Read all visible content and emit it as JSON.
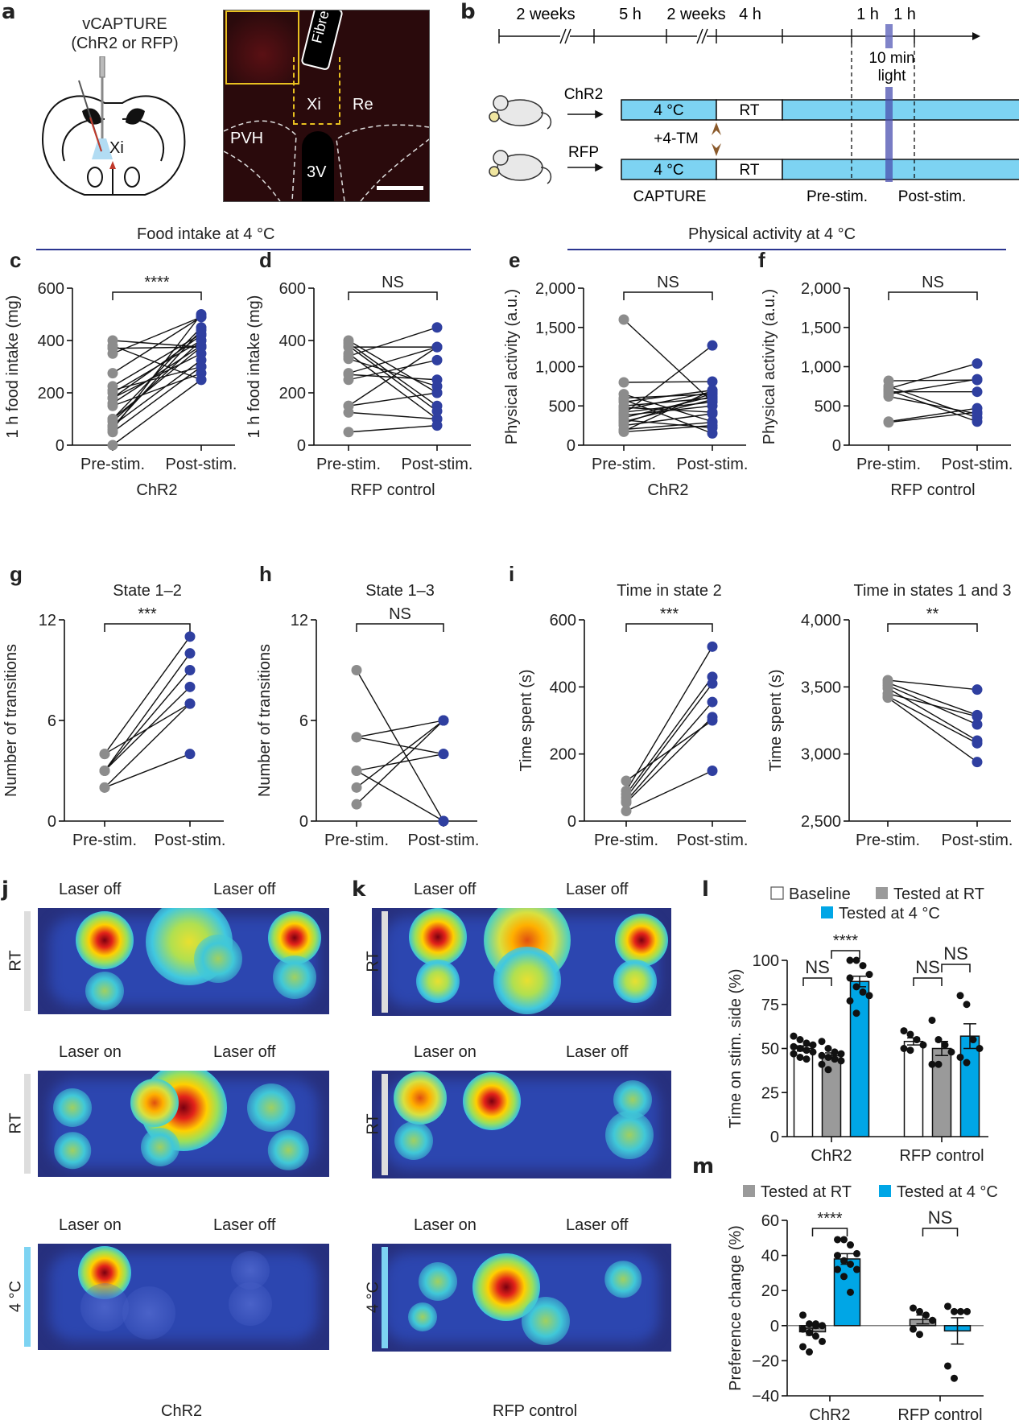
{
  "panels": {
    "a": {
      "label": "a",
      "title": "vCAPTURE",
      "subtitle": "(ChR2 or RFP)",
      "xi_label": "Xi",
      "micro": {
        "fibre": "Fibre",
        "xi": "Xi",
        "re": "Re",
        "pvh": "PVH",
        "v3": "3V"
      }
    },
    "b": {
      "label": "b",
      "timeline": [
        "2 weeks",
        "5 h",
        "2 weeks",
        "4 h",
        "1 h",
        "1 h"
      ],
      "light_label_1": "10 min",
      "light_label_2": "light",
      "groups": [
        "ChR2",
        "RFP"
      ],
      "bar_cold": "4 °C",
      "bar_rt": "RT",
      "tm_label": "+4-TM",
      "capture": "CAPTURE",
      "pre": "Pre-stim.",
      "post": "Post-stim.",
      "colors": {
        "cold": "#7dd3f2",
        "light": "#5457b0",
        "arrow": "#8b5a2b"
      }
    },
    "section_food": "Food intake at 4 °C",
    "section_activity": "Physical activity at 4 °C",
    "j": {
      "label": "j",
      "footer": "ChR2",
      "rows": [
        {
          "left": "Laser off",
          "right": "Laser off",
          "side": "RT"
        },
        {
          "left": "Laser on",
          "right": "Laser off",
          "side": "RT"
        },
        {
          "left": "Laser on",
          "right": "Laser off",
          "side": "4 °C"
        }
      ]
    },
    "k": {
      "label": "k",
      "footer": "RFP control",
      "rows": [
        {
          "left": "Laser off",
          "right": "Laser off",
          "side": "RT"
        },
        {
          "left": "Laser on",
          "right": "Laser off",
          "side": "RT"
        },
        {
          "left": "Laser on",
          "right": "Laser off",
          "side": "4 °C"
        }
      ]
    }
  },
  "colors": {
    "pre": "#8c8c8c",
    "post": "#2f3fa0",
    "section_line": "#2b3590",
    "blue_bar": "#00a6e6",
    "gray_bar": "#9a9a9a",
    "rt_bar": "#dddddd",
    "cold_bar": "#7dd3f2"
  },
  "chart_data": [
    {
      "id": "c",
      "label": "c",
      "type": "scatter",
      "title": "",
      "xlabel": "ChR2",
      "ylabel": "1 h food intake (mg)",
      "categories": [
        "Pre-stim.",
        "Post-stim."
      ],
      "ylim": [
        0,
        600
      ],
      "yticks": [
        0,
        200,
        400,
        600
      ],
      "ytick_labels": [
        "0",
        "200",
        "400",
        "600"
      ],
      "significance": "****",
      "pairs": [
        [
          400,
          375
        ],
        [
          380,
          250
        ],
        [
          370,
          375
        ],
        [
          350,
          490
        ],
        [
          275,
          490
        ],
        [
          225,
          425
        ],
        [
          210,
          300
        ],
        [
          200,
          400
        ],
        [
          180,
          350
        ],
        [
          150,
          275
        ],
        [
          100,
          450
        ],
        [
          100,
          375
        ],
        [
          75,
          325
        ],
        [
          60,
          500
        ],
        [
          50,
          300
        ],
        [
          0,
          250
        ],
        [
          180,
          420
        ],
        [
          160,
          380
        ],
        [
          90,
          400
        ],
        [
          70,
          440
        ]
      ]
    },
    {
      "id": "d",
      "label": "d",
      "type": "scatter",
      "title": "",
      "xlabel": "RFP control",
      "ylabel": "1 h food intake (mg)",
      "categories": [
        "Pre-stim.",
        "Post-stim."
      ],
      "ylim": [
        0,
        600
      ],
      "yticks": [
        0,
        200,
        400,
        600
      ],
      "ytick_labels": [
        "0",
        "200",
        "400",
        "600"
      ],
      "significance": "NS",
      "pairs": [
        [
          400,
          200
        ],
        [
          390,
          150
        ],
        [
          375,
          375
        ],
        [
          350,
          100
        ],
        [
          340,
          450
        ],
        [
          330,
          225
        ],
        [
          275,
          375
        ],
        [
          270,
          250
        ],
        [
          250,
          325
        ],
        [
          150,
          200
        ],
        [
          150,
          375
        ],
        [
          125,
          100
        ],
        [
          50,
          75
        ],
        [
          380,
          130
        ]
      ]
    },
    {
      "id": "e",
      "label": "e",
      "type": "scatter",
      "title": "",
      "xlabel": "ChR2",
      "ylabel": "Physical activity (a.u.)",
      "categories": [
        "Pre-stim.",
        "Post-stim."
      ],
      "ylim": [
        0,
        2000
      ],
      "yticks": [
        0,
        500,
        1000,
        1500,
        2000
      ],
      "ytick_labels": [
        "0",
        "500",
        "1,000",
        "1,500",
        "2,000"
      ],
      "significance": "NS",
      "pairs": [
        [
          1600,
          550
        ],
        [
          800,
          810
        ],
        [
          650,
          300
        ],
        [
          600,
          650
        ],
        [
          580,
          150
        ],
        [
          550,
          700
        ],
        [
          500,
          600
        ],
        [
          480,
          420
        ],
        [
          450,
          680
        ],
        [
          420,
          550
        ],
        [
          400,
          1270
        ],
        [
          380,
          500
        ],
        [
          350,
          620
        ],
        [
          320,
          220
        ],
        [
          300,
          580
        ],
        [
          280,
          660
        ],
        [
          250,
          400
        ],
        [
          200,
          290
        ],
        [
          180,
          700
        ],
        [
          170,
          250
        ]
      ]
    },
    {
      "id": "f",
      "label": "f",
      "type": "scatter",
      "title": "",
      "xlabel": "RFP control",
      "ylabel": "Physical activity (a.u.)",
      "categories": [
        "Pre-stim.",
        "Post-stim."
      ],
      "ylim": [
        0,
        2000
      ],
      "yticks": [
        0,
        500,
        1000,
        1500,
        2000
      ],
      "ytick_labels": [
        "0",
        "500",
        "1,000",
        "1,500",
        "2,000"
      ],
      "significance": "NS",
      "pairs": [
        [
          820,
          830
        ],
        [
          750,
          350
        ],
        [
          720,
          1040
        ],
        [
          700,
          300
        ],
        [
          680,
          680
        ],
        [
          650,
          840
        ],
        [
          620,
          400
        ],
        [
          300,
          470
        ],
        [
          290,
          420
        ]
      ]
    },
    {
      "id": "g",
      "label": "g",
      "type": "scatter",
      "title": "State 1–2",
      "xlabel": "",
      "ylabel": "Number of transitions",
      "categories": [
        "Pre-stim.",
        "Post-stim."
      ],
      "ylim": [
        0,
        12
      ],
      "yticks": [
        0,
        6,
        12
      ],
      "ytick_labels": [
        "0",
        "6",
        "12"
      ],
      "significance": "***",
      "pairs": [
        [
          4,
          11
        ],
        [
          4,
          7
        ],
        [
          3,
          10
        ],
        [
          3,
          9
        ],
        [
          3,
          8
        ],
        [
          2,
          7
        ],
        [
          2,
          4
        ]
      ]
    },
    {
      "id": "h",
      "label": "h",
      "type": "scatter",
      "title": "State 1–3",
      "xlabel": "",
      "ylabel": "Number of transitions",
      "categories": [
        "Pre-stim.",
        "Post-stim."
      ],
      "ylim": [
        0,
        12
      ],
      "yticks": [
        0,
        6,
        12
      ],
      "ytick_labels": [
        "0",
        "6",
        "12"
      ],
      "significance": "NS",
      "pairs": [
        [
          9,
          0
        ],
        [
          5,
          6
        ],
        [
          5,
          4
        ],
        [
          3,
          4
        ],
        [
          3,
          0
        ],
        [
          2,
          6
        ],
        [
          1,
          6
        ]
      ]
    },
    {
      "id": "i1",
      "label": "i",
      "type": "scatter",
      "title": "Time in state 2",
      "xlabel": "",
      "ylabel": "Time spent (s)",
      "categories": [
        "Pre-stim.",
        "Post-stim."
      ],
      "ylim": [
        0,
        600
      ],
      "yticks": [
        0,
        200,
        400,
        600
      ],
      "ytick_labels": [
        "0",
        "200",
        "400",
        "600"
      ],
      "significance": "***",
      "pairs": [
        [
          120,
          300
        ],
        [
          90,
          520
        ],
        [
          80,
          430
        ],
        [
          70,
          410
        ],
        [
          60,
          355
        ],
        [
          55,
          310
        ],
        [
          30,
          150
        ]
      ]
    },
    {
      "id": "i2",
      "label": "",
      "type": "scatter",
      "title": "Time in states 1 and 3",
      "xlabel": "",
      "ylabel": "Time spent (s)",
      "categories": [
        "Pre-stim.",
        "Post-stim."
      ],
      "ylim": [
        2500,
        4000
      ],
      "yticks": [
        2500,
        3000,
        3500,
        4000
      ],
      "ytick_labels": [
        "2,500",
        "3,000",
        "3,500",
        "4,000"
      ],
      "significance": "**",
      "pairs": [
        [
          3550,
          3480
        ],
        [
          3530,
          3290
        ],
        [
          3510,
          3220
        ],
        [
          3490,
          3100
        ],
        [
          3450,
          3280
        ],
        [
          3430,
          3080
        ],
        [
          3420,
          2940
        ]
      ]
    },
    {
      "id": "l",
      "label": "l",
      "type": "bar",
      "title": "",
      "xlabel": "",
      "ylabel": "Time on stim. side (%)",
      "groups": [
        "ChR2",
        "RFP control"
      ],
      "legend": [
        "Baseline",
        "Tested at RT",
        "Tested at 4 °C"
      ],
      "ylim": [
        0,
        100
      ],
      "yticks": [
        0,
        25,
        50,
        75,
        100
      ],
      "ytick_labels": [
        "0",
        "25",
        "50",
        "75",
        "100"
      ],
      "series": [
        {
          "name": "Baseline",
          "color": "#ffffff",
          "values": [
            50,
            54
          ],
          "sem": [
            1.5,
            2
          ],
          "points": [
            [
              57,
              55,
              53,
              52,
              51,
              50,
              49,
              48,
              47,
              45,
              44
            ],
            [
              60,
              58,
              55,
              52,
              50,
              49
            ]
          ]
        },
        {
          "name": "Tested at RT",
          "color": "#9a9a9a",
          "values": [
            46,
            50
          ],
          "sem": [
            1.5,
            4
          ],
          "points": [
            [
              54,
              50,
              48,
              47,
              46,
              45,
              44,
              43,
              41,
              38
            ],
            [
              66,
              55,
              52,
              48,
              41,
              41
            ]
          ]
        },
        {
          "name": "Tested at 4 °C",
          "color": "#00a6e6",
          "values": [
            88,
            57
          ],
          "sem": [
            3,
            7
          ],
          "points": [
            [
              100,
              100,
              97,
              92,
              90,
              85,
              82,
              80,
              77,
              70
            ],
            [
              80,
              75,
              55,
              50,
              45,
              42
            ]
          ]
        }
      ],
      "significance": [
        {
          "group": 0,
          "from": 0,
          "to": 1,
          "text": "NS"
        },
        {
          "group": 0,
          "from": 1,
          "to": 2,
          "text": "****"
        },
        {
          "group": 1,
          "from": 0,
          "to": 1,
          "text": "NS"
        },
        {
          "group": 1,
          "from": 1,
          "to": 2,
          "text": "NS"
        }
      ]
    },
    {
      "id": "m",
      "label": "m",
      "type": "bar",
      "title": "",
      "xlabel": "",
      "ylabel": "Preference change (%)",
      "groups": [
        "ChR2",
        "RFP control"
      ],
      "legend": [
        "Tested at RT",
        "Tested at 4 °C"
      ],
      "ylim": [
        -40,
        60
      ],
      "yticks": [
        -40,
        -20,
        0,
        20,
        40,
        60
      ],
      "ytick_labels": [
        "−40",
        "−20",
        "0",
        "20",
        "40",
        "60"
      ],
      "series": [
        {
          "name": "Tested at RT",
          "color": "#9a9a9a",
          "values": [
            -3.5,
            3.5
          ],
          "sem": [
            2,
            2.5
          ],
          "points": [
            [
              6,
              1,
              1,
              0,
              -2,
              -4,
              -6,
              -9,
              -12,
              -15,
              0
            ],
            [
              10,
              8,
              6,
              3,
              -2,
              -5
            ]
          ]
        },
        {
          "name": "Tested at 4 °C",
          "color": "#00a6e6",
          "values": [
            38,
            -3
          ],
          "sem": [
            3,
            7.5
          ],
          "points": [
            [
              49,
              49,
              46,
              41,
              40,
              37,
              35,
              32,
              32,
              28,
              19
            ],
            [
              11,
              8,
              8,
              8,
              -23,
              -30
            ]
          ]
        }
      ],
      "significance": [
        {
          "group": 0,
          "from": 0,
          "to": 1,
          "text": "****"
        },
        {
          "group": 1,
          "from": 0,
          "to": 1,
          "text": "NS"
        }
      ]
    }
  ]
}
